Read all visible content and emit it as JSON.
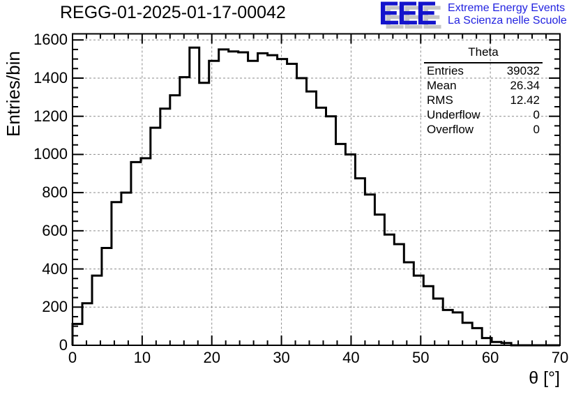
{
  "logo": {
    "letters": "EEE",
    "line1": "Extreme Energy Events",
    "line2": "La Scienza nelle Scuole",
    "color": "#1414cc",
    "shadow": "#c6c6c6",
    "text_color": "#2222e0"
  },
  "stats": {
    "title": "Theta",
    "rows": [
      {
        "label": "Entries",
        "value": "39032"
      },
      {
        "label": "Mean",
        "value": "26.34"
      },
      {
        "label": "RMS",
        "value": "12.42"
      },
      {
        "label": "Underflow",
        "value": "0"
      },
      {
        "label": "Overflow",
        "value": "0"
      }
    ]
  },
  "chart_data": {
    "type": "bar",
    "subtype": "step-histogram",
    "title": "REGG-01-2025-01-17-00042",
    "xlabel": "θ [°]",
    "ylabel": "Entries/bin",
    "xlim": [
      0,
      70
    ],
    "ylim": [
      0,
      1632
    ],
    "bin_start": 0,
    "bin_width": 1.4,
    "values": [
      112,
      220,
      365,
      510,
      750,
      800,
      960,
      980,
      1140,
      1240,
      1310,
      1405,
      1560,
      1375,
      1490,
      1550,
      1540,
      1535,
      1490,
      1530,
      1520,
      1500,
      1475,
      1400,
      1330,
      1245,
      1200,
      1055,
      1000,
      875,
      790,
      685,
      580,
      530,
      435,
      365,
      310,
      245,
      185,
      172,
      118,
      90,
      38,
      17,
      12,
      0,
      0,
      0,
      0,
      0
    ],
    "xticks": [
      0,
      10,
      20,
      30,
      40,
      50,
      60,
      70
    ],
    "yticks": [
      0,
      200,
      400,
      600,
      800,
      1000,
      1200,
      1400,
      1600
    ],
    "x_minor_step": 2,
    "y_minor_step": 50,
    "grid": true,
    "grid_color": "#8a8a8a",
    "line_color": "#000000",
    "frame_color": "#000000",
    "background": "#ffffff"
  }
}
